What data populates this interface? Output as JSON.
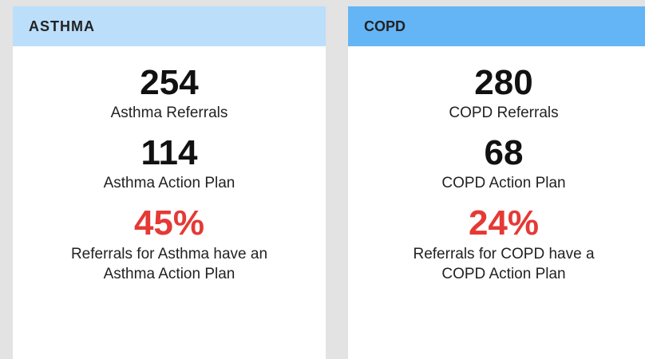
{
  "cards": [
    {
      "title": "ASTHMA",
      "metrics": [
        {
          "value": "254",
          "label": "Asthma Referrals"
        },
        {
          "value": "114",
          "label": "Asthma Action Plan"
        }
      ],
      "highlight": {
        "value": "45%",
        "lines": [
          "Referrals for Asthma have an",
          "Asthma Action Plan"
        ]
      }
    },
    {
      "title": "COPD",
      "metrics": [
        {
          "value": "280",
          "label": "COPD Referrals"
        },
        {
          "value": "68",
          "label": "COPD Action Plan"
        }
      ],
      "highlight": {
        "value": "24%",
        "lines": [
          "Referrals for COPD have a",
          "COPD Action Plan"
        ]
      }
    }
  ]
}
